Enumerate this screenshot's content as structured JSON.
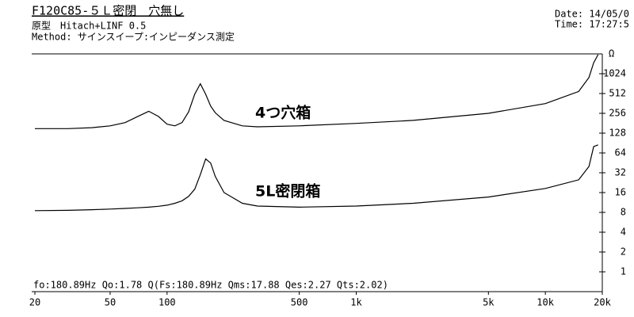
{
  "chart_data": {
    "type": "line",
    "title": "F120C85-５Ｌ密閉　穴無し",
    "subtitle": "原型　Hitach+LINF 0.5",
    "method": "Method: サインスイープ:インピーダンス測定",
    "date": "Date: 14/05/0",
    "time": "Time: 17:27:5",
    "result": "fo:180.89Hz  Qo:1.78 Q(Fs:180.89Hz  Qms:17.88 Qes:2.27 Qts:2.02)",
    "y_unit": "Ω",
    "x": [
      20,
      30,
      40,
      50,
      60,
      70,
      80,
      90,
      100,
      110,
      120,
      130,
      140,
      150,
      160,
      170,
      180,
      200,
      250,
      300,
      500,
      1000,
      2000,
      5000,
      10000,
      15000,
      17000,
      18000,
      19000
    ],
    "series": [
      {
        "name": "4つ穴箱",
        "color": "#000000",
        "values": [
          150,
          150,
          155,
          165,
          185,
          230,
          275,
          230,
          175,
          165,
          185,
          270,
          500,
          720,
          500,
          330,
          260,
          200,
          165,
          160,
          165,
          180,
          200,
          256,
          360,
          550,
          900,
          1500,
          2000
        ]
      },
      {
        "name": "5L密閉箱",
        "color": "#000000",
        "values": [
          8.5,
          8.6,
          8.8,
          9,
          9.2,
          9.4,
          9.6,
          9.9,
          10.3,
          11,
          12,
          14,
          18,
          30,
          52,
          45,
          28,
          16,
          11,
          10,
          9.6,
          10,
          11,
          13.7,
          18.5,
          25,
          40,
          80,
          85
        ]
      }
    ],
    "xscale": "log",
    "yscale": "log",
    "xlim": [
      20,
      20000
    ],
    "ylim": [
      0.5,
      2048
    ],
    "xticks": [
      20,
      50,
      100,
      500,
      {
        "value": 1000,
        "label": "1k"
      },
      {
        "value": 5000,
        "label": "5k"
      },
      {
        "value": 10000,
        "label": "10k"
      },
      {
        "value": 20000,
        "label": "20k"
      }
    ],
    "yticks": [
      1,
      2,
      4,
      8,
      16,
      32,
      64,
      128,
      256,
      512,
      1024
    ],
    "grid": false
  }
}
